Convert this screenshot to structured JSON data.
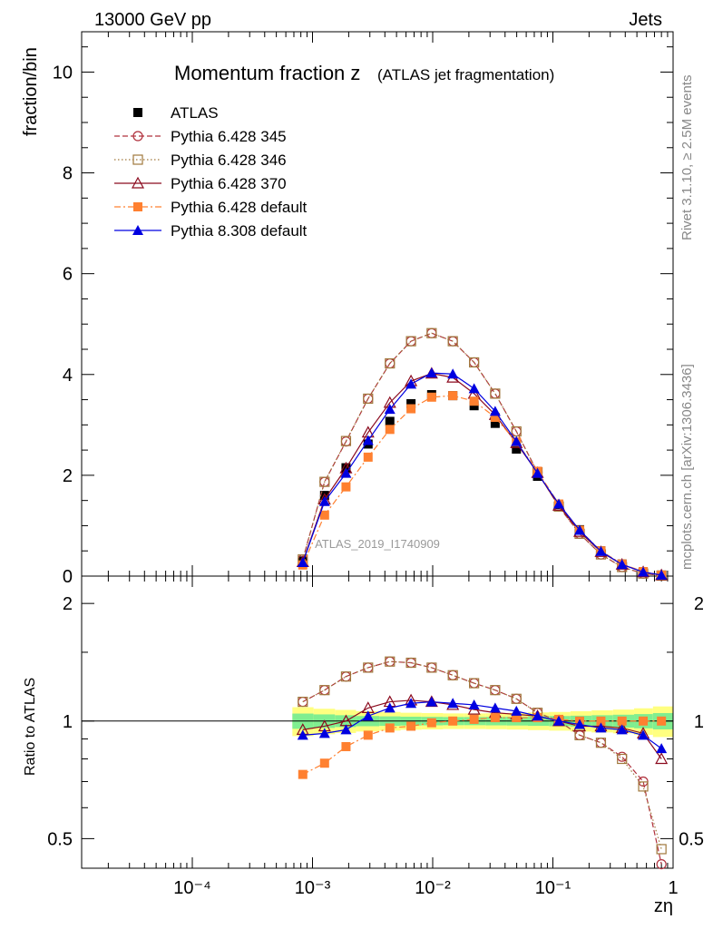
{
  "header": {
    "left": "13000 GeV pp",
    "right": "Jets",
    "side_top": "Rivet 3.1.10, ≥ 2.5M events",
    "side_bottom": "mcplots.cern.ch [arXiv:1306.3436]",
    "watermark": "ATLAS_2019_I1740909"
  },
  "chart_data": [
    {
      "type": "line",
      "title": "Momentum fraction z",
      "subtitle": "(ATLAS jet fragmentation)",
      "xlabel": "zη",
      "ylabel": "fraction/bin",
      "xscale": "log",
      "xlim": [
        1.2e-05,
        1.0
      ],
      "ylim": [
        0,
        10.8
      ],
      "yticks": [
        0,
        2,
        4,
        6,
        8,
        10
      ],
      "ytick_labels": [
        "0",
        "2",
        "4",
        "6",
        "8",
        "10"
      ],
      "xtick_labels": [
        "10⁻⁴",
        "10⁻³",
        "10⁻²",
        "10⁻¹",
        "1"
      ],
      "legend_position": "top-left",
      "x": [
        0.00083,
        0.00126,
        0.0019,
        0.0029,
        0.0044,
        0.0066,
        0.0098,
        0.0147,
        0.0221,
        0.0331,
        0.0497,
        0.0745,
        0.112,
        0.167,
        0.251,
        0.376,
        0.564,
        0.8
      ],
      "series": [
        {
          "name": "ATLAS",
          "color": "#000000",
          "marker": "square-filled",
          "line": "none",
          "values": [
            0.3,
            1.6,
            2.15,
            2.62,
            3.07,
            3.42,
            3.6,
            3.58,
            3.38,
            3.03,
            2.52,
            1.98,
            1.42,
            0.92,
            0.5,
            0.24,
            0.09,
            0.02
          ]
        },
        {
          "name": "Pythia 6.428 345",
          "color": "#b0303c",
          "marker": "circle-open",
          "line": "dashed",
          "values": [
            0.33,
            1.87,
            2.67,
            3.52,
            4.22,
            4.66,
            4.82,
            4.66,
            4.24,
            3.62,
            2.87,
            2.06,
            1.38,
            0.84,
            0.43,
            0.18,
            0.05,
            0.01
          ]
        },
        {
          "name": "Pythia 6.428 346",
          "color": "#a0783c",
          "marker": "square-open",
          "line": "dotted",
          "values": [
            0.33,
            1.87,
            2.68,
            3.52,
            4.22,
            4.66,
            4.82,
            4.66,
            4.24,
            3.62,
            2.87,
            2.06,
            1.38,
            0.84,
            0.43,
            0.18,
            0.05,
            0.01
          ]
        },
        {
          "name": "Pythia 6.428 370",
          "color": "#8b0a1e",
          "marker": "triangle-open",
          "line": "solid",
          "values": [
            0.28,
            1.52,
            2.14,
            2.85,
            3.44,
            3.87,
            4.02,
            3.94,
            3.62,
            3.2,
            2.64,
            2.05,
            1.4,
            0.88,
            0.48,
            0.23,
            0.08,
            0.02
          ]
        },
        {
          "name": "Pythia 6.428 default",
          "color": "#ff8030",
          "marker": "square-filled",
          "line": "dashdot",
          "values": [
            0.22,
            1.21,
            1.77,
            2.36,
            2.91,
            3.32,
            3.55,
            3.58,
            3.47,
            3.15,
            2.66,
            2.08,
            1.43,
            0.91,
            0.5,
            0.24,
            0.09,
            0.02
          ]
        },
        {
          "name": "Pythia 8.308 default",
          "color": "#0000e0",
          "marker": "triangle-filled",
          "line": "solid",
          "values": [
            0.27,
            1.48,
            2.04,
            2.69,
            3.31,
            3.81,
            4.03,
            4.01,
            3.72,
            3.27,
            2.67,
            2.04,
            1.43,
            0.91,
            0.49,
            0.23,
            0.08,
            0.02
          ]
        }
      ]
    },
    {
      "type": "line",
      "ylabel": "Ratio to ATLAS",
      "xscale": "log",
      "yscale": "log",
      "xlim": [
        1.2e-05,
        1.0
      ],
      "ylim": [
        0.42,
        2.35
      ],
      "yticks": [
        0.5,
        1,
        2
      ],
      "ytick_labels": [
        "0.5",
        "1",
        "2"
      ],
      "reference_line": 1,
      "uncertainty_bands": {
        "x": [
          0.00068,
          0.00102,
          0.00154,
          0.0023,
          0.0036,
          0.0054,
          0.0081,
          0.0122,
          0.0183,
          0.0275,
          0.0413,
          0.062,
          0.093,
          0.14,
          0.21,
          0.316,
          0.474,
          0.68,
          1.0
        ],
        "outer": [
          0.085,
          0.075,
          0.068,
          0.06,
          0.055,
          0.05,
          0.048,
          0.046,
          0.046,
          0.047,
          0.049,
          0.052,
          0.055,
          0.06,
          0.065,
          0.07,
          0.078,
          0.09
        ],
        "inner": [
          0.045,
          0.04,
          0.035,
          0.03,
          0.028,
          0.026,
          0.025,
          0.024,
          0.024,
          0.025,
          0.026,
          0.028,
          0.03,
          0.032,
          0.035,
          0.038,
          0.042,
          0.048
        ],
        "outer_color": "#ffff80",
        "inner_color": "#80ee90"
      },
      "series": [
        {
          "name": "Pythia 6.428 345",
          "values": [
            1.12,
            1.2,
            1.3,
            1.37,
            1.42,
            1.41,
            1.37,
            1.31,
            1.25,
            1.2,
            1.14,
            1.05,
            1.0,
            0.92,
            0.88,
            0.81,
            0.7,
            0.43
          ]
        },
        {
          "name": "Pythia 6.428 346",
          "values": [
            1.12,
            1.2,
            1.3,
            1.37,
            1.42,
            1.41,
            1.37,
            1.31,
            1.25,
            1.2,
            1.14,
            1.05,
            1.0,
            0.92,
            0.88,
            0.8,
            0.68,
            0.47
          ]
        },
        {
          "name": "Pythia 6.428 370",
          "values": [
            0.95,
            0.97,
            1.0,
            1.08,
            1.12,
            1.13,
            1.12,
            1.1,
            1.07,
            1.05,
            1.04,
            1.03,
            1.0,
            0.97,
            0.97,
            0.96,
            0.93,
            0.8
          ]
        },
        {
          "name": "Pythia 6.428 default",
          "values": [
            0.73,
            0.78,
            0.86,
            0.92,
            0.96,
            0.97,
            0.99,
            1.0,
            1.01,
            1.02,
            1.02,
            1.02,
            1.01,
            1.0,
            1.0,
            1.0,
            1.0,
            1.0
          ]
        },
        {
          "name": "Pythia 8.308 default",
          "values": [
            0.92,
            0.93,
            0.95,
            1.03,
            1.08,
            1.11,
            1.12,
            1.11,
            1.1,
            1.08,
            1.06,
            1.03,
            1.0,
            0.98,
            0.96,
            0.95,
            0.92,
            0.85
          ]
        }
      ]
    }
  ]
}
